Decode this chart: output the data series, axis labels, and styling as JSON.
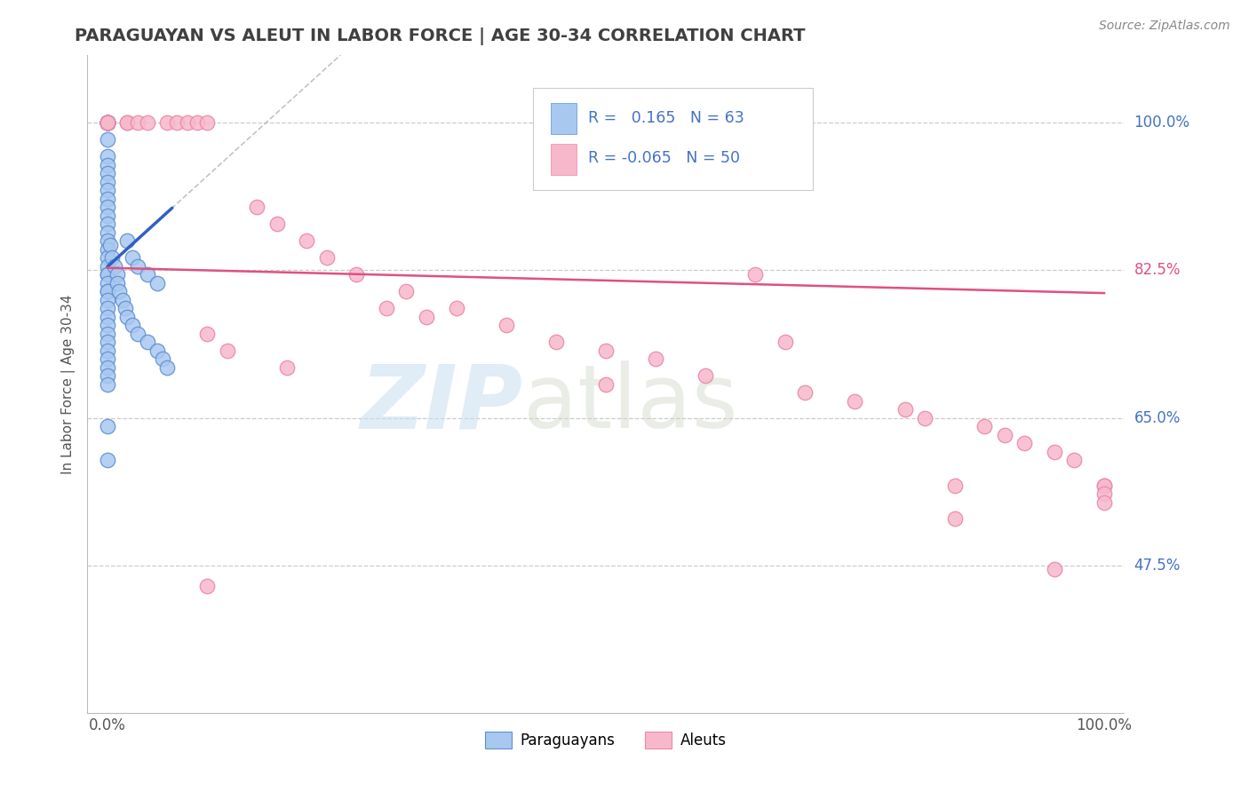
{
  "title": "PARAGUAYAN VS ALEUT IN LABOR FORCE | AGE 30-34 CORRELATION CHART",
  "source_text": "Source: ZipAtlas.com",
  "ylabel": "In Labor Force | Age 30-34",
  "xlim": [
    -0.02,
    1.02
  ],
  "ylim": [
    0.3,
    1.08
  ],
  "ytick_values": [
    0.475,
    0.65,
    0.825,
    1.0
  ],
  "ytick_labels": [
    "47.5%",
    "65.0%",
    "82.5%",
    "100.0%"
  ],
  "legend_blue_label": "Paraguayans",
  "legend_pink_label": "Aleuts",
  "r_blue": 0.165,
  "n_blue": 63,
  "r_pink": -0.065,
  "n_pink": 50,
  "blue_line_color": "#3060c0",
  "pink_line_color": "#e05080",
  "blue_dot_facecolor": "#a8c8f0",
  "blue_dot_edgecolor": "#6090d0",
  "pink_dot_facecolor": "#f8b8cc",
  "pink_dot_edgecolor": "#e888a8",
  "grid_color": "#cccccc",
  "background_color": "#ffffff",
  "title_color": "#404040",
  "source_color": "#888888",
  "axis_label_color": "#555555",
  "right_label_color_blue": "#4472c4",
  "right_label_color_pink": "#e05080",
  "legend_r_color": "#4472c4",
  "legend_n_color": "#4472c4",
  "blue_pts_x": [
    0.0,
    0.0,
    0.0,
    0.0,
    0.0,
    0.0,
    0.0,
    0.0,
    0.0,
    0.0,
    0.0,
    0.0,
    0.0,
    0.0,
    0.0,
    0.0,
    0.0,
    0.0,
    0.0,
    0.0,
    0.0,
    0.0,
    0.0,
    0.0,
    0.0,
    0.0,
    0.0,
    0.0,
    0.0,
    0.0,
    0.0,
    0.0,
    0.0,
    0.0,
    0.0,
    0.0,
    0.0,
    0.0,
    0.0,
    0.0,
    0.003,
    0.005,
    0.007,
    0.01,
    0.01,
    0.012,
    0.015,
    0.018,
    0.02,
    0.025,
    0.03,
    0.04,
    0.05,
    0.055,
    0.06,
    0.02,
    0.025,
    0.03,
    0.04,
    0.05,
    0.0,
    0.0,
    0.0
  ],
  "blue_pts_y": [
    1.0,
    1.0,
    1.0,
    1.0,
    1.0,
    1.0,
    1.0,
    1.0,
    1.0,
    1.0,
    0.98,
    0.96,
    0.95,
    0.94,
    0.93,
    0.92,
    0.91,
    0.9,
    0.89,
    0.88,
    0.87,
    0.86,
    0.85,
    0.84,
    0.83,
    0.82,
    0.82,
    0.81,
    0.8,
    0.8,
    0.79,
    0.78,
    0.77,
    0.76,
    0.75,
    0.74,
    0.73,
    0.72,
    0.71,
    0.7,
    0.855,
    0.84,
    0.83,
    0.82,
    0.81,
    0.8,
    0.79,
    0.78,
    0.77,
    0.76,
    0.75,
    0.74,
    0.73,
    0.72,
    0.71,
    0.86,
    0.84,
    0.83,
    0.82,
    0.81,
    0.69,
    0.64,
    0.6
  ],
  "pink_pts_x": [
    0.0,
    0.0,
    0.0,
    0.0,
    0.02,
    0.02,
    0.03,
    0.04,
    0.06,
    0.07,
    0.08,
    0.09,
    0.1,
    0.15,
    0.17,
    0.2,
    0.22,
    0.25,
    0.3,
    0.35,
    0.4,
    0.45,
    0.5,
    0.55,
    0.6,
    0.65,
    0.7,
    0.75,
    0.8,
    0.82,
    0.85,
    0.88,
    0.9,
    0.92,
    0.95,
    0.97,
    1.0,
    1.0,
    1.0,
    1.0,
    0.1,
    0.12,
    0.18,
    0.28,
    0.32,
    0.5,
    0.68,
    0.85,
    0.95,
    0.1
  ],
  "pink_pts_y": [
    1.0,
    1.0,
    1.0,
    1.0,
    1.0,
    1.0,
    1.0,
    1.0,
    1.0,
    1.0,
    1.0,
    1.0,
    1.0,
    0.9,
    0.88,
    0.86,
    0.84,
    0.82,
    0.8,
    0.78,
    0.76,
    0.74,
    0.73,
    0.72,
    0.7,
    0.82,
    0.68,
    0.67,
    0.66,
    0.65,
    0.57,
    0.64,
    0.63,
    0.62,
    0.61,
    0.6,
    0.57,
    0.57,
    0.56,
    0.55,
    0.75,
    0.73,
    0.71,
    0.78,
    0.77,
    0.69,
    0.74,
    0.53,
    0.47,
    0.45
  ]
}
